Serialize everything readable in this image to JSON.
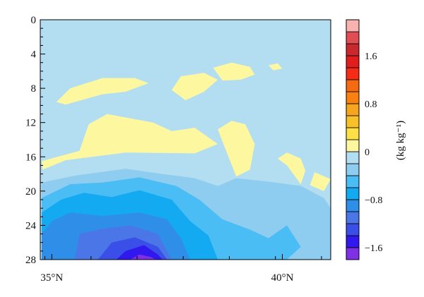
{
  "chart_data": {
    "type": "heatmap",
    "title": "",
    "xlabel": "",
    "ylabel": "",
    "x_ticks": [
      {
        "value": 35,
        "label": "35°N"
      },
      {
        "value": 40,
        "label": "40°N"
      }
    ],
    "x_minor_ticks": [
      34.85,
      35.85,
      36.85,
      37.85,
      38.85,
      39.85,
      40.85
    ],
    "xlim": [
      34.75,
      41.05
    ],
    "y_ticks": [
      {
        "value": 0,
        "label": "0"
      },
      {
        "value": 4,
        "label": "4"
      },
      {
        "value": 8,
        "label": "8"
      },
      {
        "value": 12,
        "label": "12"
      },
      {
        "value": 16,
        "label": "16"
      },
      {
        "value": 20,
        "label": "20"
      },
      {
        "value": 24,
        "label": "24"
      },
      {
        "value": 28,
        "label": "28"
      }
    ],
    "ylim": [
      0,
      28
    ],
    "y_inverted": true,
    "colorbar": {
      "unit_label": "(kg kg⁻¹)",
      "levels": [
        -1.8,
        -1.6,
        -1.4,
        -1.2,
        -1.0,
        -0.8,
        -0.6,
        -0.4,
        -0.2,
        0,
        0.2,
        0.4,
        0.6,
        0.8,
        1.0,
        1.2,
        1.4,
        1.6,
        1.8,
        2.0
      ],
      "colors": [
        "#7f30e6",
        "#3118ef",
        "#3a4fe8",
        "#4a76e8",
        "#2f8ee8",
        "#14aaf2",
        "#4abdf5",
        "#8ecdf0",
        "#b3ddf0",
        "#fdf8a0",
        "#fde046",
        "#f8c127",
        "#f5a51e",
        "#f88112",
        "#f66a12",
        "#f52c18",
        "#e21d1d",
        "#c9282c",
        "#e04e54",
        "#f8b3b0"
      ],
      "labels": [
        {
          "value": -1.6,
          "label": "−1.6"
        },
        {
          "value": -0.8,
          "label": "−0.8"
        },
        {
          "value": 0,
          "label": "0"
        },
        {
          "value": 0.8,
          "label": "0.8"
        },
        {
          "value": 1.6,
          "label": "1.6"
        }
      ]
    },
    "background_level": -0.1,
    "contour_regions": [
      {
        "level": 0.1,
        "points": [
          [
            35.1,
            9.6
          ],
          [
            35.4,
            8.0
          ],
          [
            36.1,
            6.8
          ],
          [
            36.8,
            6.8
          ],
          [
            37.1,
            7.4
          ],
          [
            36.6,
            8.4
          ],
          [
            36.1,
            8.7
          ],
          [
            35.3,
            9.9
          ]
        ]
      },
      {
        "level": 0.1,
        "points": [
          [
            37.6,
            8.2
          ],
          [
            37.8,
            6.6
          ],
          [
            38.3,
            6.2
          ],
          [
            38.6,
            7.0
          ],
          [
            38.3,
            8.4
          ],
          [
            37.9,
            9.4
          ]
        ]
      },
      {
        "level": 0.1,
        "points": [
          [
            38.5,
            5.6
          ],
          [
            38.9,
            5.0
          ],
          [
            39.3,
            5.5
          ],
          [
            39.4,
            6.4
          ],
          [
            39.1,
            7.0
          ],
          [
            38.7,
            7.1
          ]
        ]
      },
      {
        "level": 0.1,
        "points": [
          [
            39.7,
            5.3
          ],
          [
            39.9,
            5.1
          ],
          [
            40.0,
            5.7
          ],
          [
            39.8,
            5.9
          ]
        ]
      },
      {
        "level": 0.1,
        "points": [
          [
            34.78,
            16.5
          ],
          [
            35.6,
            15.3
          ],
          [
            35.8,
            12.2
          ],
          [
            36.2,
            11.0
          ],
          [
            37.2,
            12.0
          ],
          [
            37.6,
            13.0
          ],
          [
            38.1,
            12.6
          ],
          [
            38.6,
            14.5
          ],
          [
            38.1,
            15.6
          ],
          [
            36.6,
            15.5
          ],
          [
            35.3,
            16.4
          ],
          [
            34.8,
            17.5
          ]
        ]
      },
      {
        "level": 0.1,
        "points": [
          [
            38.9,
            11.8
          ],
          [
            39.2,
            12.2
          ],
          [
            39.4,
            14.5
          ],
          [
            39.3,
            17.5
          ],
          [
            39.0,
            18.3
          ],
          [
            38.7,
            14.2
          ],
          [
            38.6,
            12.8
          ]
        ]
      },
      {
        "level": 0.1,
        "points": [
          [
            40.1,
            15.5
          ],
          [
            40.4,
            16.2
          ],
          [
            40.5,
            17.6
          ],
          [
            40.4,
            19.2
          ],
          [
            40.1,
            17.0
          ],
          [
            39.9,
            16.2
          ]
        ]
      },
      {
        "level": 0.1,
        "points": [
          [
            40.7,
            17.8
          ],
          [
            41.05,
            18.6
          ],
          [
            40.9,
            20.0
          ],
          [
            40.6,
            19.3
          ]
        ]
      },
      {
        "level": -0.3,
        "points": [
          [
            34.78,
            19.0
          ],
          [
            35.5,
            18.2
          ],
          [
            36.6,
            17.4
          ],
          [
            37.4,
            18.0
          ],
          [
            38.1,
            18.5
          ],
          [
            38.6,
            19.4
          ],
          [
            39.0,
            18.5
          ],
          [
            39.7,
            18.9
          ],
          [
            40.4,
            19.4
          ],
          [
            40.9,
            20.8
          ],
          [
            41.05,
            22.0
          ],
          [
            41.05,
            28
          ],
          [
            34.78,
            28
          ]
        ]
      },
      {
        "level": -0.5,
        "points": [
          [
            34.78,
            20.8
          ],
          [
            35.4,
            19.2
          ],
          [
            36.1,
            19.0
          ],
          [
            36.9,
            18.4
          ],
          [
            37.7,
            19.4
          ],
          [
            38.2,
            21.0
          ],
          [
            38.7,
            23.3
          ],
          [
            39.3,
            24.5
          ],
          [
            39.7,
            25.5
          ],
          [
            40.1,
            24.0
          ],
          [
            40.4,
            26.5
          ],
          [
            40.1,
            28
          ],
          [
            34.78,
            28
          ]
        ]
      },
      {
        "level": -0.7,
        "points": [
          [
            34.78,
            22.5
          ],
          [
            35.2,
            21.0
          ],
          [
            35.7,
            20.2
          ],
          [
            36.3,
            20.7
          ],
          [
            36.9,
            19.9
          ],
          [
            37.6,
            21.0
          ],
          [
            38.0,
            23.5
          ],
          [
            38.4,
            25.2
          ],
          [
            38.6,
            28
          ],
          [
            34.78,
            28
          ]
        ]
      },
      {
        "level": -0.9,
        "points": [
          [
            34.78,
            25.0
          ],
          [
            35.0,
            23.5
          ],
          [
            35.4,
            22.5
          ],
          [
            36.1,
            22.9
          ],
          [
            36.9,
            22.5
          ],
          [
            37.5,
            23.3
          ],
          [
            37.8,
            25.5
          ],
          [
            38.0,
            28
          ],
          [
            34.78,
            28
          ]
        ]
      },
      {
        "level": -1.1,
        "points": [
          [
            35.5,
            28
          ],
          [
            35.6,
            25.0
          ],
          [
            36.1,
            24.4
          ],
          [
            36.7,
            24.0
          ],
          [
            37.3,
            25.0
          ],
          [
            37.6,
            28
          ]
        ]
      },
      {
        "level": -1.3,
        "points": [
          [
            36.0,
            28
          ],
          [
            36.3,
            26.0
          ],
          [
            36.8,
            25.4
          ],
          [
            37.3,
            26.5
          ],
          [
            37.5,
            28
          ]
        ]
      },
      {
        "level": -1.5,
        "points": [
          [
            36.4,
            28
          ],
          [
            36.6,
            27.0
          ],
          [
            37.0,
            26.3
          ],
          [
            37.3,
            27.4
          ],
          [
            37.4,
            28
          ]
        ]
      },
      {
        "level": -1.7,
        "points": [
          [
            36.7,
            28
          ],
          [
            36.9,
            27.4
          ],
          [
            37.15,
            27.7
          ],
          [
            37.25,
            28
          ]
        ]
      }
    ]
  }
}
